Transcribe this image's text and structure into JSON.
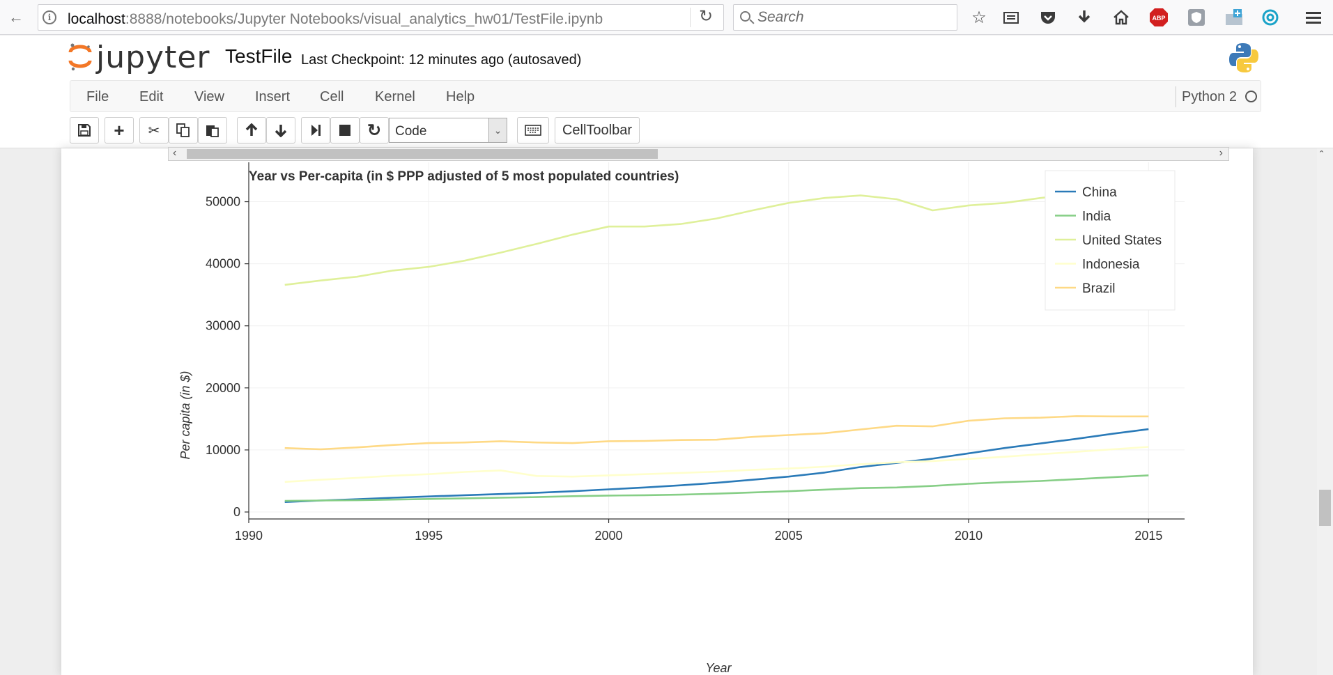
{
  "browser": {
    "url_host": "localhost",
    "url_rest": ":8888/notebooks/Jupyter Notebooks/visual_analytics_hw01/TestFile.ipynb",
    "search_placeholder": "Search",
    "icons": [
      "back-icon",
      "info-icon",
      "reload-icon",
      "search-icon",
      "star-icon",
      "reading-list-icon",
      "pocket-icon",
      "download-icon",
      "home-icon",
      "adblock-icon",
      "shield-icon",
      "screenshot-icon",
      "sync-icon",
      "menu-icon"
    ],
    "adblock_label": "ABP"
  },
  "jupyter": {
    "logo_text": "jupyter",
    "notebook_name": "TestFile",
    "checkpoint": "Last Checkpoint: 12 minutes ago (autosaved)",
    "menu": [
      "File",
      "Edit",
      "View",
      "Insert",
      "Cell",
      "Kernel",
      "Help"
    ],
    "kernel_name": "Python 2",
    "toolbar": {
      "cell_type": "Code",
      "celltoolbar_label": "CellToolbar"
    }
  },
  "chart_data": {
    "type": "line",
    "title": "Year vs Per-capita (in $ PPP adjusted of 5 most populated countries)",
    "xlabel": "Year",
    "ylabel": "Per capita (in $)",
    "xlim": [
      1990,
      2016
    ],
    "ylim": [
      0,
      55000
    ],
    "xticks": [
      1990,
      1995,
      2000,
      2005,
      2010,
      2015
    ],
    "yticks": [
      0,
      10000,
      20000,
      30000,
      40000,
      50000
    ],
    "grid": true,
    "legend_position": "top-right",
    "x": [
      1991,
      1992,
      1993,
      1994,
      1995,
      1996,
      1997,
      1998,
      1999,
      2000,
      2001,
      2002,
      2003,
      2004,
      2005,
      2006,
      2007,
      2008,
      2009,
      2010,
      2011,
      2012,
      2013,
      2014,
      2015
    ],
    "series": [
      {
        "name": "China",
        "color": "#2a7ab8",
        "values": [
          1600,
          1850,
          2050,
          2300,
          2500,
          2700,
          2900,
          3100,
          3350,
          3650,
          3950,
          4300,
          4700,
          5200,
          5700,
          6350,
          7250,
          7900,
          8600,
          9450,
          10300,
          11050,
          11800,
          12600,
          13350
        ]
      },
      {
        "name": "India",
        "color": "#86ce86",
        "values": [
          1800,
          1850,
          1900,
          2000,
          2100,
          2200,
          2300,
          2400,
          2550,
          2650,
          2700,
          2800,
          2950,
          3150,
          3350,
          3600,
          3850,
          3950,
          4200,
          4550,
          4800,
          5000,
          5300,
          5600,
          5900
        ]
      },
      {
        "name": "United States",
        "color": "#dff09a",
        "values": [
          36600,
          37300,
          37900,
          38900,
          39500,
          40500,
          41800,
          43200,
          44700,
          46000,
          46000,
          46400,
          47300,
          48600,
          49800,
          50600,
          51000,
          50400,
          48600,
          49400,
          49800,
          50600,
          51200,
          52000,
          52800
        ]
      },
      {
        "name": "Indonesia",
        "color": "#ffffcc",
        "values": [
          4850,
          5200,
          5500,
          5850,
          6100,
          6450,
          6700,
          5800,
          5700,
          5900,
          6100,
          6300,
          6500,
          6800,
          7000,
          7300,
          7700,
          8000,
          8200,
          8550,
          8900,
          9300,
          9700,
          10100,
          10500
        ]
      },
      {
        "name": "Brazil",
        "color": "#fed985",
        "values": [
          10300,
          10100,
          10400,
          10800,
          11100,
          11200,
          11400,
          11200,
          11100,
          11400,
          11450,
          11600,
          11650,
          12100,
          12400,
          12700,
          13300,
          13900,
          13800,
          14700,
          15100,
          15200,
          15450,
          15400,
          15400
        ]
      }
    ]
  }
}
